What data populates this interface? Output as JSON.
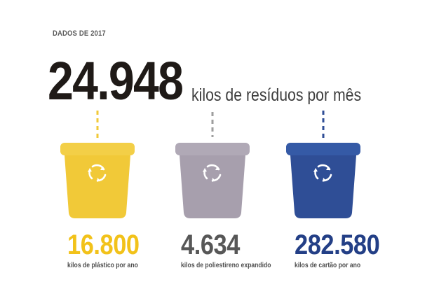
{
  "eyebrow": "DADOS DE 2017",
  "headline": {
    "value": "24.948",
    "unit_text": "kilos de resíduos por mês"
  },
  "bins": [
    {
      "name": "plastic",
      "color": "#f1c938",
      "lid_color": "#f3cf47",
      "dash_color": "#f1c938",
      "icon": "recycle-icon",
      "value": "16.800",
      "label": "kilos de plástico por ano"
    },
    {
      "name": "polystyrene",
      "color": "#a79fad",
      "lid_color": "#b0a9b6",
      "dash_color": "#9e9e9e",
      "icon": "recycle-icon",
      "value": "4.634",
      "label": "kilos de poliestireno expandido"
    },
    {
      "name": "cardboard",
      "color": "#2f4e96",
      "lid_color": "#355aa6",
      "dash_color": "#2f4e96",
      "icon": "recycle-icon",
      "value": "282.580",
      "label": "kilos de cartão por ano"
    }
  ],
  "stat_colors": {
    "plastic": "#f2c21a",
    "polystyrene": "#575757",
    "cardboard": "#233f86"
  }
}
